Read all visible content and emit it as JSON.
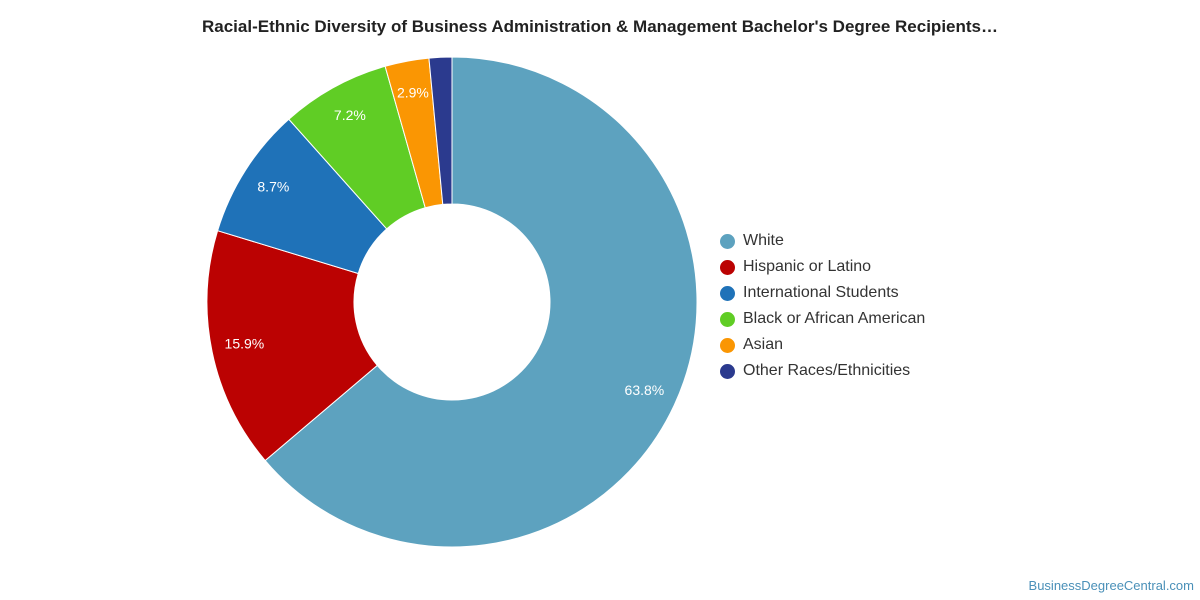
{
  "chart_data": {
    "type": "pie",
    "title": "Racial-Ethnic Diversity of Business Administration & Management Bachelor's Degree Recipients…",
    "donut": true,
    "legend_position": "right",
    "slices": [
      {
        "label": "White",
        "value": 63.8,
        "value_label": "63.8%",
        "color": "#5da2bf"
      },
      {
        "label": "Hispanic or Latino",
        "value": 15.9,
        "value_label": "15.9%",
        "color": "#bb0202"
      },
      {
        "label": "International Students",
        "value": 8.7,
        "value_label": "8.7%",
        "color": "#1f72b8"
      },
      {
        "label": "Black or African American",
        "value": 7.2,
        "value_label": "7.2%",
        "color": "#60cd25"
      },
      {
        "label": "Asian",
        "value": 2.9,
        "value_label": "2.9%",
        "color": "#fa9603"
      },
      {
        "label": "Other Races/Ethnicities",
        "value": 1.5,
        "value_label": "",
        "color": "#2b3a8e"
      }
    ]
  },
  "watermark": "BusinessDegreeCentral.com"
}
